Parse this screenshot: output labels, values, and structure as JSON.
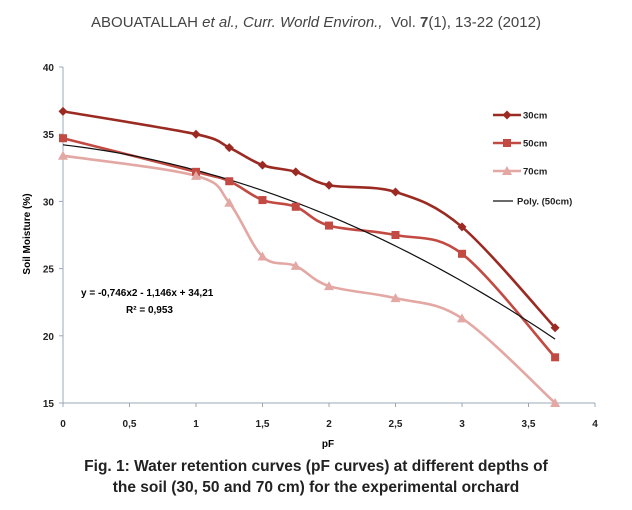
{
  "header": {
    "authors": "ABOUATALLAH",
    "etal": " et al.",
    "journal": ", Curr. World Environ.,",
    "vol_prefix": "  Vol. ",
    "vol_num": "7",
    "issue": "(1), 13-22 (2012)"
  },
  "caption": {
    "line1": "Fig. 1: Water retention curves (pF curves) at different depths of",
    "line2": "the soil (30, 50 and 70 cm) for the experimental orchard"
  },
  "equation": {
    "line1": "y = -0,746x2 - 1,146x + 34,21",
    "line2": "R² = 0,953"
  },
  "colors": {
    "s30": "#9b2a22",
    "s50": "#c24a42",
    "s70": "#e3a8a3",
    "poly": "#111111",
    "axis": "#9aa8b8"
  },
  "chart_data": {
    "type": "line",
    "xlabel": "pF",
    "ylabel": "Soil Moisture (%)",
    "xlim": [
      0,
      4
    ],
    "ylim": [
      15,
      40
    ],
    "xticks": [
      "0",
      "0,5",
      "1",
      "1,5",
      "2",
      "2,5",
      "3",
      "3,5",
      "4"
    ],
    "xtick_values": [
      0,
      0.5,
      1,
      1.5,
      2,
      2.5,
      3,
      3.5,
      4
    ],
    "yticks": [
      "15",
      "20",
      "25",
      "30",
      "35",
      "40"
    ],
    "ytick_values": [
      15,
      20,
      25,
      30,
      35,
      40
    ],
    "x": [
      0,
      1,
      1.25,
      1.5,
      1.75,
      2,
      2.5,
      3,
      3.7
    ],
    "grid": false,
    "legend_position": "right",
    "series": [
      {
        "name": "30cm",
        "marker": "diamond",
        "color": "#9b2a22",
        "values": [
          36.7,
          35.0,
          34.0,
          32.7,
          32.2,
          31.2,
          30.7,
          28.1,
          20.6
        ]
      },
      {
        "name": "50cm",
        "marker": "square",
        "color": "#c24a42",
        "values": [
          34.7,
          32.2,
          31.5,
          30.1,
          29.6,
          28.2,
          27.5,
          26.1,
          18.4
        ]
      },
      {
        "name": "70cm",
        "marker": "triangle",
        "color": "#e3a8a3",
        "values": [
          33.4,
          31.9,
          29.9,
          25.9,
          25.2,
          23.7,
          22.8,
          21.3,
          15.0
        ]
      },
      {
        "name": "Poly. (50cm)",
        "marker": "none",
        "color": "#111111",
        "trend": {
          "type": "polynomial",
          "coefficients": [
            34.21,
            -1.146,
            -0.746
          ],
          "from": 0,
          "to": 3.7
        }
      }
    ]
  }
}
